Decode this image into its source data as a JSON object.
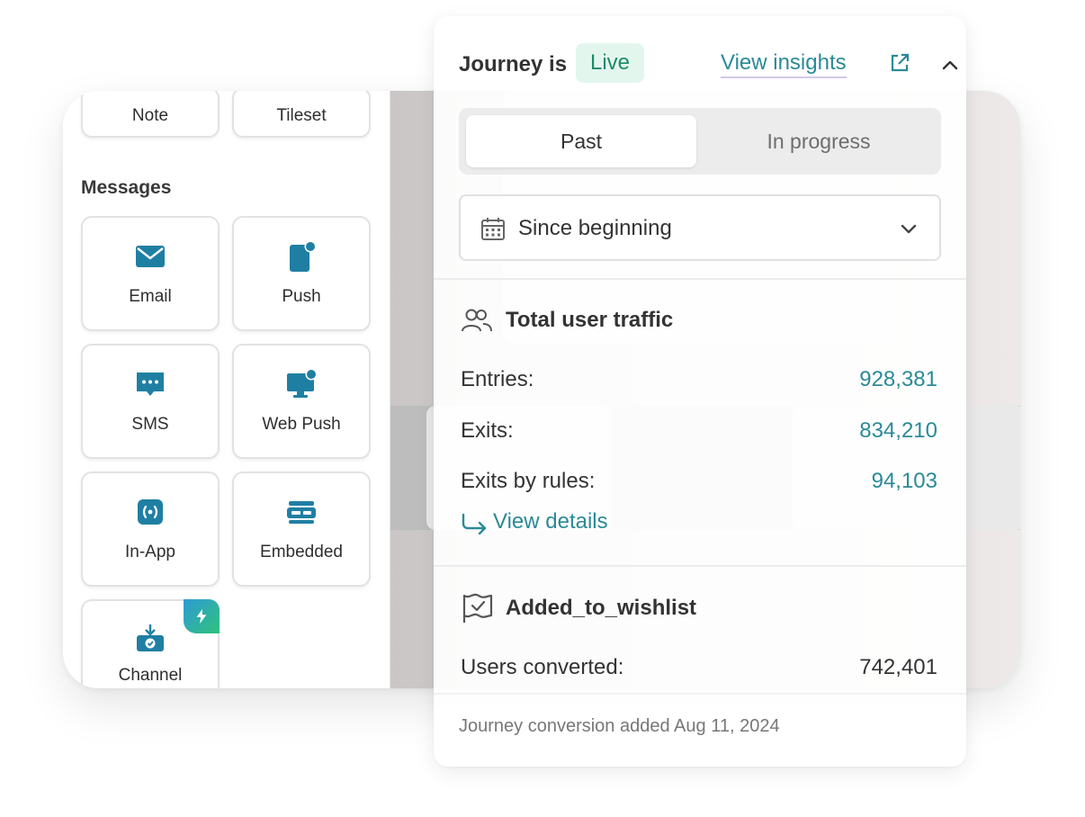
{
  "left_panel": {
    "top_tiles": [
      {
        "label": "Note",
        "icon": "note-icon"
      },
      {
        "label": "Tileset",
        "icon": "tileset-icon"
      }
    ],
    "section_title": "Messages",
    "tiles": [
      {
        "label": "Email",
        "icon": "envelope-icon"
      },
      {
        "label": "Push",
        "icon": "mobile-push-icon"
      },
      {
        "label": "SMS",
        "icon": "sms-chat-icon"
      },
      {
        "label": "Web Push",
        "icon": "monitor-push-icon"
      },
      {
        "label": "In-App",
        "icon": "in-app-icon"
      },
      {
        "label": "Embedded",
        "icon": "embedded-icon"
      },
      {
        "label": "Channel",
        "icon": "channel-inbox-icon",
        "badge": "lightning-bolt-icon"
      }
    ]
  },
  "panel": {
    "journey_label": "Journey is",
    "status": "Live",
    "view_insights": "View insights",
    "tabs": [
      {
        "label": "Past",
        "active": true
      },
      {
        "label": "In progress",
        "active": false
      }
    ],
    "date_filter": "Since beginning",
    "traffic": {
      "title": "Total user traffic",
      "rows": [
        {
          "label": "Entries:",
          "value": "928,381"
        },
        {
          "label": "Exits:",
          "value": "834,210"
        },
        {
          "label": "Exits by rules:",
          "value": "94,103"
        }
      ],
      "view_details": "View details"
    },
    "goal": {
      "title": "Added_to_wishlist",
      "label": "Users converted:",
      "value": "742,401",
      "footer": "Journey conversion added Aug 11, 2024"
    }
  },
  "colors": {
    "accent_teal": "#2b8a96",
    "icon_blue": "#1f7fa3",
    "live_bg": "#e3f6ee",
    "live_text": "#1f8a6a"
  }
}
